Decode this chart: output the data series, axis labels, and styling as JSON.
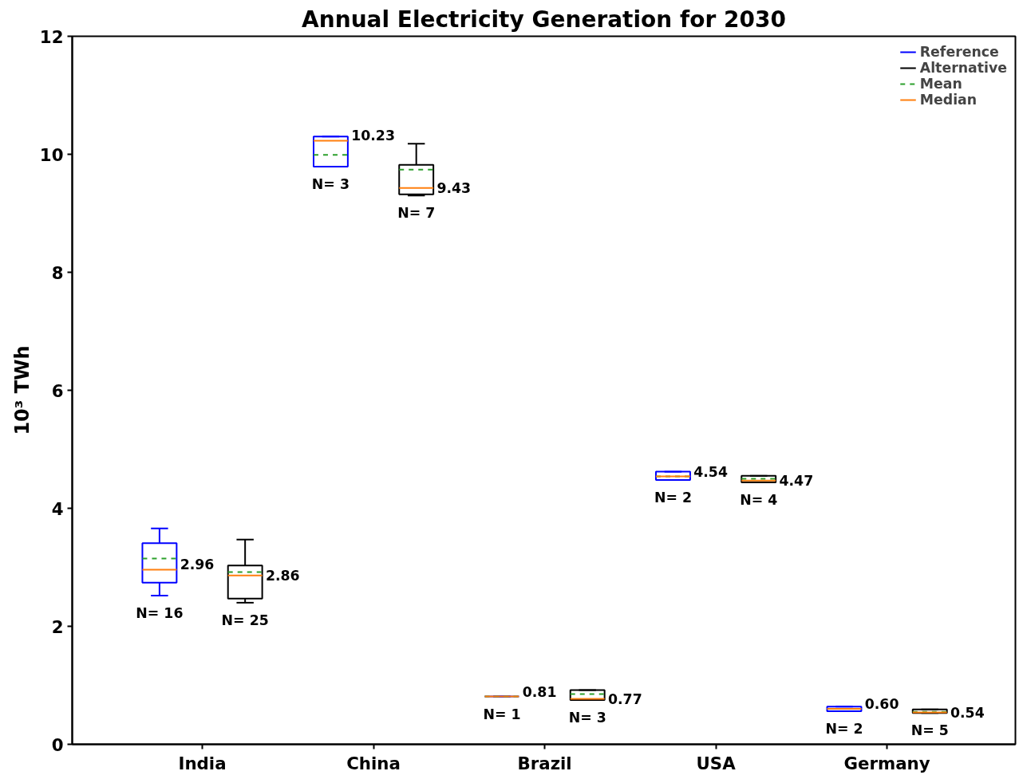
{
  "chart_data": {
    "type": "box",
    "title": "Annual Electricity Generation for 2030",
    "ylabel": "10³ TWh",
    "categories": [
      "India",
      "China",
      "Brazil",
      "USA",
      "Germany"
    ],
    "ylim": [
      0,
      12
    ],
    "yticks": [
      0,
      2,
      4,
      6,
      8,
      10,
      12
    ],
    "grid": false,
    "legend": "top right",
    "series": [
      {
        "name": "Reference",
        "color": "#0000ff",
        "value_labels": [
          "2.96",
          "10.23",
          "0.81",
          "4.54",
          "0.60"
        ],
        "boxes": [
          {
            "low": 2.52,
            "q1": 2.74,
            "median": 2.96,
            "q3": 3.41,
            "high": 3.66,
            "mean": 3.15
          },
          {
            "low": 9.79,
            "q1": 9.79,
            "median": 10.23,
            "q3": 10.3,
            "high": 10.3,
            "mean": 9.99
          },
          {
            "low": 0.81,
            "q1": 0.81,
            "median": 0.81,
            "q3": 0.81,
            "high": 0.81,
            "mean": 0.81
          },
          {
            "low": 4.48,
            "q1": 4.48,
            "median": 4.54,
            "q3": 4.62,
            "high": 4.62,
            "mean": 4.54
          },
          {
            "low": 0.56,
            "q1": 0.56,
            "median": 0.6,
            "q3": 0.64,
            "high": 0.64,
            "mean": 0.6
          }
        ]
      },
      {
        "name": "Alternative",
        "color": "#000000",
        "value_labels": [
          "2.86",
          "9.43",
          "0.77",
          "4.47",
          "0.54"
        ],
        "boxes": [
          {
            "low": 2.4,
            "q1": 2.47,
            "median": 2.86,
            "q3": 3.03,
            "high": 3.47,
            "mean": 2.92
          },
          {
            "low": 9.3,
            "q1": 9.32,
            "median": 9.43,
            "q3": 9.82,
            "high": 10.18,
            "mean": 9.74
          },
          {
            "low": 0.75,
            "q1": 0.75,
            "median": 0.77,
            "q3": 0.92,
            "high": 0.92,
            "mean": 0.85
          },
          {
            "low": 4.44,
            "q1": 4.44,
            "median": 4.47,
            "q3": 4.55,
            "high": 4.55,
            "mean": 4.5
          },
          {
            "low": 0.53,
            "q1": 0.53,
            "median": 0.54,
            "q3": 0.59,
            "high": 0.59,
            "mean": 0.55
          }
        ]
      },
      {
        "name": "Mean",
        "color": "#2ca02c",
        "line_style": "dashed",
        "values": [
          null,
          null,
          null,
          null,
          null
        ]
      },
      {
        "name": "Median",
        "color": "#ff7f0e",
        "line_style": "solid",
        "values": [
          null,
          null,
          null,
          null,
          null
        ]
      }
    ],
    "annotations": [
      "N= 16",
      "N= 25",
      "N= 3",
      "N= 7",
      "N= 1",
      "N= 3",
      "N= 2",
      "N= 4",
      "N= 2",
      "N= 5"
    ]
  }
}
